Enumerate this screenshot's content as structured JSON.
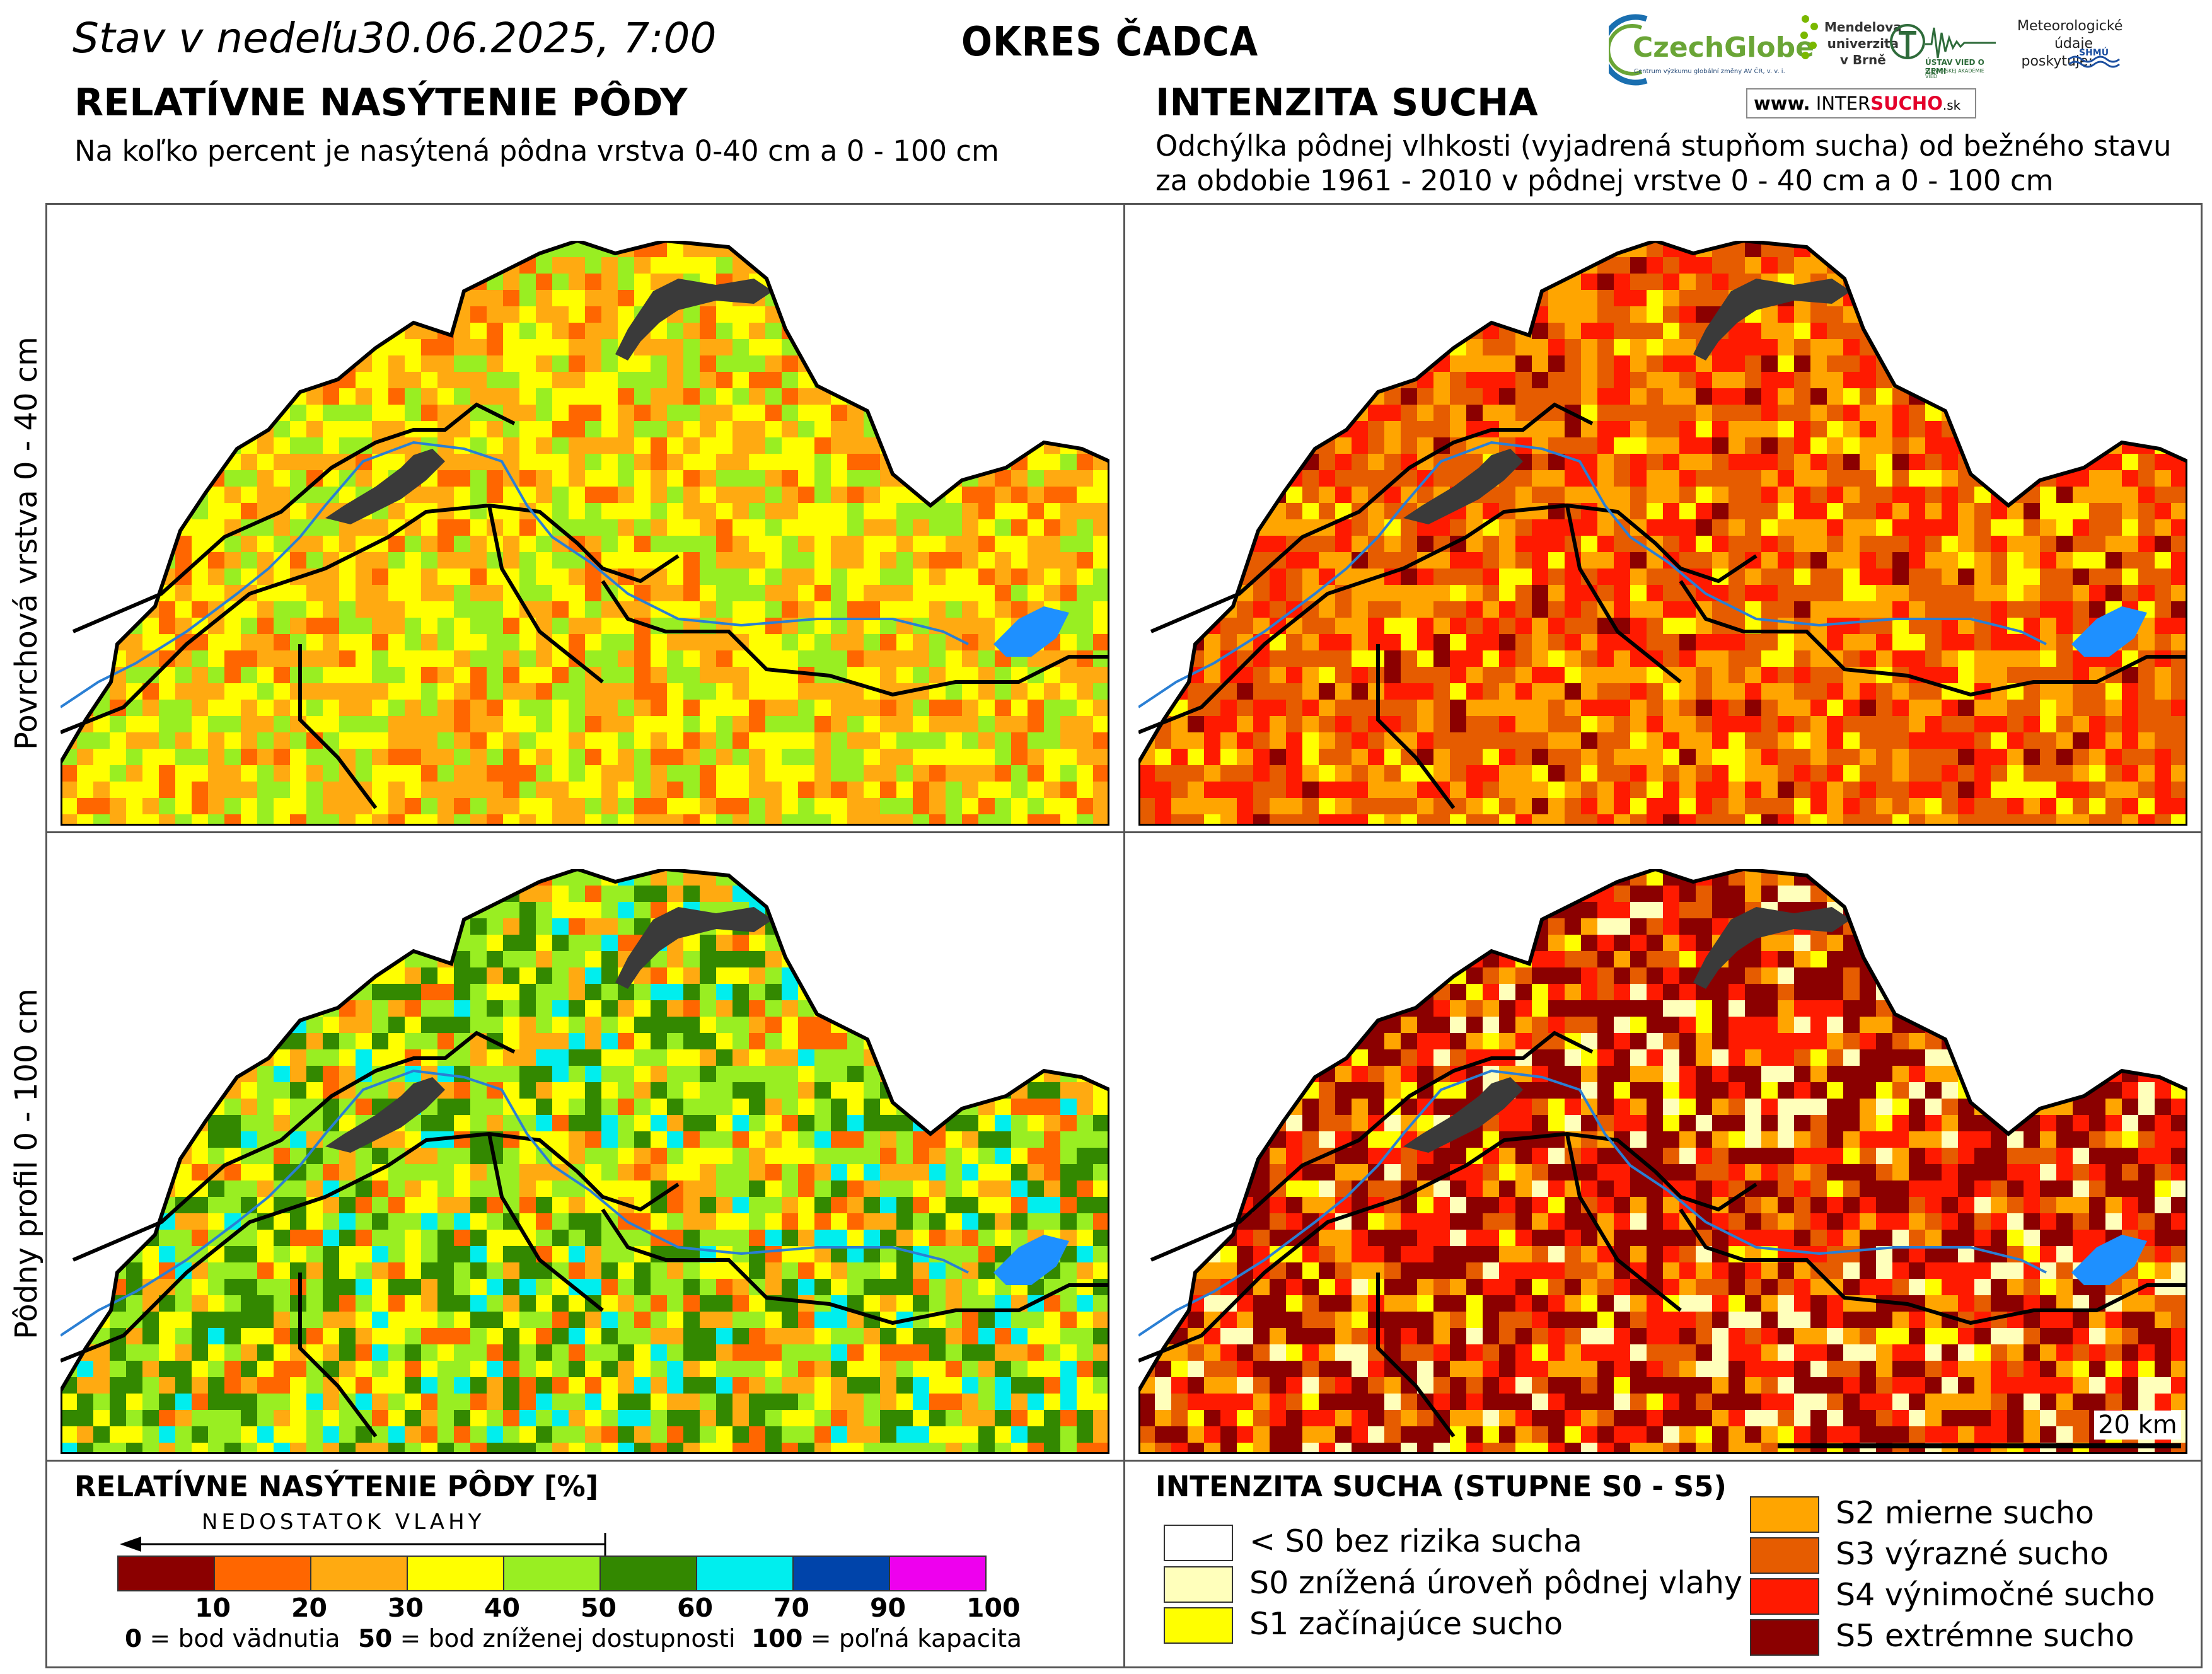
{
  "header": {
    "date_prefix": "Stav v nedeľu",
    "date_value": "30.06.2025, 7:00",
    "district": "OKRES ČADCA"
  },
  "left_section": {
    "title": "RELATÍVNE NASÝTENIE PÔDY",
    "subtitle": "Na koľko percent je nasýtená pôdna vrstva 0-40 cm a 0 - 100 cm"
  },
  "right_section": {
    "title": "INTENZITA SUCHA",
    "subtitle_line1": "Odchýlka pôdnej vlhkosti (vyjadrená stupňom sucha) od bežného stavu",
    "subtitle_line2": "za obdobie 1961 - 2010 v pôdnej vrstve 0 - 40 cm a 0 - 100 cm"
  },
  "logos": {
    "czechglobe": "CzechGlobe",
    "czechglobe_sub": "Centrum výzkumu globální změny AV ČR, v. v. i.",
    "mendelu_line1": "Mendelova",
    "mendelu_line2": "univerzita",
    "mendelu_line3": "v Brně",
    "uvzsav": "ÚSTAV VIED O ZEMI",
    "uvzsav_sub": "SLOVENSKEJ AKADÉMIE VIED",
    "meteo_line1": "Meteorologické",
    "meteo_line2": "údaje",
    "meteo_line3": "poskytuje:",
    "shmu": "SHMÚ",
    "intersucho_www": "www.",
    "intersucho_a": "INTER",
    "intersucho_b": "SUCHO",
    "intersucho_c": ".sk"
  },
  "row_labels": {
    "top": "Povrchová vrstva 0 - 40 cm",
    "bottom": "Pôdny profil 0 - 100 cm"
  },
  "scale_bar": {
    "label": "20 km"
  },
  "saturation_legend": {
    "title": "RELATÍVNE NASÝTENIE PÔDY [%]",
    "arrow_label": "NEDOSTATOK VLAHY",
    "classes": [
      {
        "color": "#8b0000"
      },
      {
        "color": "#ff6600"
      },
      {
        "color": "#ffaa11"
      },
      {
        "color": "#ffff00"
      },
      {
        "color": "#99ee22"
      },
      {
        "color": "#338800"
      },
      {
        "color": "#00eeee"
      },
      {
        "color": "#0044aa"
      },
      {
        "color": "#ee00ee"
      }
    ],
    "ticks": [
      "10",
      "20",
      "30",
      "40",
      "50",
      "60",
      "70",
      "90",
      "100"
    ],
    "def0_key": "0",
    "def0_text": " = bod vädnutia",
    "def50_key": "50",
    "def50_text": " = bod zníženej dostupnosti",
    "def100_key": "100",
    "def100_text": " = poľná kapacita"
  },
  "drought_legend": {
    "title": "INTENZITA SUCHA (STUPNE S0 - S5)",
    "items": [
      {
        "label": "< S0 bez rizika sucha",
        "color": "#ffffff"
      },
      {
        "label": "S0 znížená úroveň pôdnej vlahy",
        "color": "#ffffbb"
      },
      {
        "label": "S1 začínajúce sucho",
        "color": "#ffff00"
      },
      {
        "label": "S2 mierne sucho",
        "color": "#ffa500"
      },
      {
        "label": "S3 výrazné sucho",
        "color": "#e65c00"
      },
      {
        "label": "S4 výnimočné sucho",
        "color": "#ff1a00"
      },
      {
        "label": "S5 extrémne sucho",
        "color": "#8b0000"
      }
    ]
  },
  "maps": {
    "sat_top": {
      "name": "saturation-0-40cm",
      "palette": [
        "#ffff00",
        "#ffaa11",
        "#99ee22",
        "#ffaa11",
        "#ffff00",
        "#ff6600"
      ],
      "weights": [
        0.36,
        0.3,
        0.2,
        0.0,
        0.0,
        0.07
      ]
    },
    "drought_top": {
      "name": "drought-0-40cm",
      "palette": [
        "#ffa500",
        "#e65c00",
        "#ff1a00",
        "#8b0000",
        "#ffff00"
      ],
      "weights": [
        0.33,
        0.33,
        0.25,
        0.06,
        0.03
      ]
    },
    "sat_bottom": {
      "name": "saturation-0-100cm",
      "palette": [
        "#99ee22",
        "#338800",
        "#ffff00",
        "#ffaa11",
        "#00eeee",
        "#ff6600"
      ],
      "weights": [
        0.33,
        0.22,
        0.18,
        0.15,
        0.08,
        0.04
      ]
    },
    "drought_bottom": {
      "name": "drought-0-100cm",
      "palette": [
        "#8b0000",
        "#ff1a00",
        "#e65c00",
        "#ffa500",
        "#ffff00",
        "#ffffbb"
      ],
      "weights": [
        0.4,
        0.22,
        0.15,
        0.13,
        0.07,
        0.03
      ]
    }
  }
}
